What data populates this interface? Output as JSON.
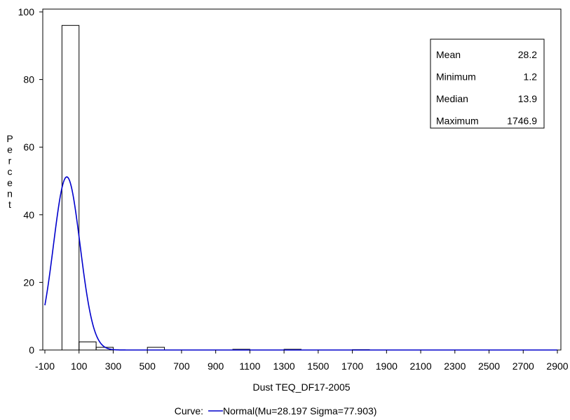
{
  "chart_data": {
    "type": "bar",
    "subtype": "histogram",
    "xlabel": "Dust TEQ_DF17-2005",
    "ylabel": "Percent",
    "xlim": [
      -100,
      2900
    ],
    "ylim": [
      0,
      100
    ],
    "x_ticks": [
      -100,
      100,
      300,
      500,
      700,
      900,
      1100,
      1300,
      1500,
      1700,
      1900,
      2100,
      2300,
      2500,
      2700,
      2900
    ],
    "y_ticks": [
      0,
      20,
      40,
      60,
      80,
      100
    ],
    "bin_width": 100,
    "bins": [
      {
        "start": 0,
        "end": 100,
        "percent": 96
      },
      {
        "start": 100,
        "end": 200,
        "percent": 2.4
      },
      {
        "start": 200,
        "end": 300,
        "percent": 0.8
      },
      {
        "start": 500,
        "end": 600,
        "percent": 0.8
      },
      {
        "start": 1000,
        "end": 1100,
        "percent": 0.2
      },
      {
        "start": 1300,
        "end": 1400,
        "percent": 0.2
      },
      {
        "start": 1700,
        "end": 1800,
        "percent": 0.1
      }
    ],
    "curve": {
      "type": "normal",
      "mu": 28.197,
      "sigma": 77.903,
      "color": "#0000cc"
    },
    "curve_legend_label": "Curve:",
    "curve_legend_text": "Normal(Mu=28.197 Sigma=77.903)",
    "stats": [
      {
        "label": "Mean",
        "value": "28.2"
      },
      {
        "label": "Minimum",
        "value": "1.2"
      },
      {
        "label": "Median",
        "value": "13.9"
      },
      {
        "label": "Maximum",
        "value": "1746.9"
      }
    ],
    "grid": false,
    "legend_position": "bottom-center",
    "stats_position": "top-right"
  }
}
